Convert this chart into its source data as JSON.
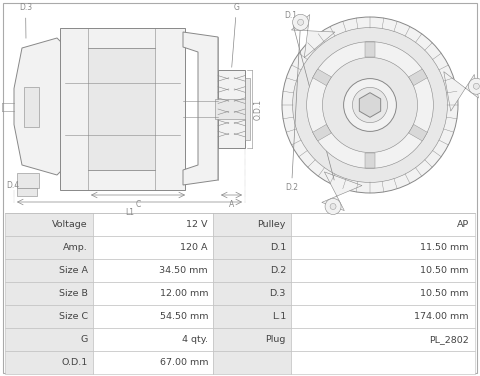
{
  "bg_color": "#ffffff",
  "border_color": "#aaaaaa",
  "table_border": "#bbbbbb",
  "table_bg_label": "#e8e8e8",
  "table_bg_value": "#ffffff",
  "diagram_line": "#888888",
  "diagram_fill_light": "#f2f2f2",
  "diagram_fill_med": "#e8e8e8",
  "diagram_fill_dark": "#d8d8d8",
  "table_text": "#444444",
  "table_rows": [
    [
      "Voltage",
      "12 V",
      "Pulley",
      "AP"
    ],
    [
      "Amp.",
      "120 A",
      "D.1",
      "11.50 mm"
    ],
    [
      "Size A",
      "34.50 mm",
      "D.2",
      "10.50 mm"
    ],
    [
      "Size B",
      "12.00 mm",
      "D.3",
      "10.50 mm"
    ],
    [
      "Size C",
      "54.50 mm",
      "L.1",
      "174.00 mm"
    ],
    [
      "G",
      "4 qty.",
      "Plug",
      "PL_2802"
    ],
    [
      "O.D.1",
      "67.00 mm",
      "",
      ""
    ]
  ]
}
